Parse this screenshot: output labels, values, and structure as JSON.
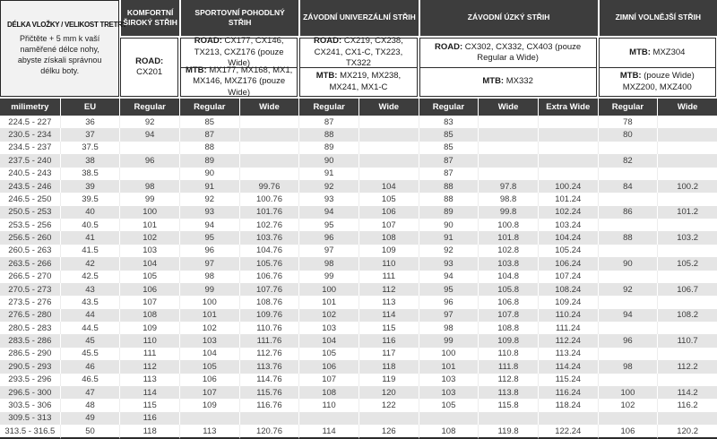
{
  "colors": {
    "header_bg": "#3d3d3d",
    "header_text": "#ffffff",
    "zebra_row": "#e5e5e5",
    "info_box_bg": "#f2f2f2",
    "border_dark": "#2b2b2b"
  },
  "chart_data": {
    "type": "table",
    "info_box": {
      "title": "DÉLKA VLOŽKY / VELIKOST TRETRY",
      "description": "Přičtěte + 5 mm k vaší naměřené délce nohy, abyste získali správnou délku boty."
    },
    "groups": [
      {
        "name": "KOMFORTNÍ ŠIROKÝ STŘIH",
        "rows": [
          {
            "label": "ROAD:",
            "models": "CX201"
          }
        ]
      },
      {
        "name": "SPORTOVNÍ POHODLNÝ STŘIH",
        "rows": [
          {
            "label": "ROAD:",
            "models": "CX177, CX146, TX213, CXZ176 (pouze Wide)"
          },
          {
            "label": "MTB:",
            "models": "MX177, MX168, MX1, MX146, MXZ176 (pouze Wide)"
          }
        ]
      },
      {
        "name": "ZÁVODNÍ UNIVERZÁLNÍ STŘIH",
        "rows": [
          {
            "label": "ROAD:",
            "models": "CX219, CX238, CX241, CX1-C, TX223, TX322"
          },
          {
            "label": "MTB:",
            "models": "MX219, MX238, MX241, MX1-C"
          }
        ]
      },
      {
        "name": "ZÁVODNÍ ÚZKÝ STŘIH",
        "rows": [
          {
            "label": "ROAD:",
            "models": "CX302, CX332, CX403 (pouze Regular a Wide)"
          },
          {
            "label": "MTB:",
            "models": "MX332"
          }
        ]
      },
      {
        "name": "ZIMNÍ VOLNĚJŠÍ STŘIH",
        "rows": [
          {
            "label": "MTB:",
            "models": "MXZ304"
          },
          {
            "label": "MTB:",
            "models": "(pouze Wide) MXZ200, MXZ400"
          }
        ]
      }
    ],
    "columns": [
      "milimetry",
      "EU",
      "Regular",
      "Regular",
      "Wide",
      "Regular",
      "Wide",
      "Regular",
      "Wide",
      "Extra Wide",
      "Regular",
      "Wide"
    ],
    "rows": [
      [
        "224.5 - 227",
        "36",
        "92",
        "85",
        "",
        "87",
        "",
        "83",
        "",
        "",
        "78",
        ""
      ],
      [
        "230.5 - 234",
        "37",
        "94",
        "87",
        "",
        "88",
        "",
        "85",
        "",
        "",
        "80",
        ""
      ],
      [
        "234.5 - 237",
        "37.5",
        "",
        "88",
        "",
        "89",
        "",
        "85",
        "",
        "",
        "",
        ""
      ],
      [
        "237.5 - 240",
        "38",
        "96",
        "89",
        "",
        "90",
        "",
        "87",
        "",
        "",
        "82",
        ""
      ],
      [
        "240.5 - 243",
        "38.5",
        "",
        "90",
        "",
        "91",
        "",
        "87",
        "",
        "",
        "",
        ""
      ],
      [
        "243.5 - 246",
        "39",
        "98",
        "91",
        "99.76",
        "92",
        "104",
        "88",
        "97.8",
        "100.24",
        "84",
        "100.2"
      ],
      [
        "246.5 - 250",
        "39.5",
        "99",
        "92",
        "100.76",
        "93",
        "105",
        "88",
        "98.8",
        "101.24",
        "",
        ""
      ],
      [
        "250.5 - 253",
        "40",
        "100",
        "93",
        "101.76",
        "94",
        "106",
        "89",
        "99.8",
        "102.24",
        "86",
        "101.2"
      ],
      [
        "253.5 - 256",
        "40.5",
        "101",
        "94",
        "102.76",
        "95",
        "107",
        "90",
        "100.8",
        "103.24",
        "",
        ""
      ],
      [
        "256.5 - 260",
        "41",
        "102",
        "95",
        "103.76",
        "96",
        "108",
        "91",
        "101.8",
        "104.24",
        "88",
        "103.2"
      ],
      [
        "260.5 - 263",
        "41.5",
        "103",
        "96",
        "104.76",
        "97",
        "109",
        "92",
        "102.8",
        "105.24",
        "",
        ""
      ],
      [
        "263.5 - 266",
        "42",
        "104",
        "97",
        "105.76",
        "98",
        "110",
        "93",
        "103.8",
        "106.24",
        "90",
        "105.2"
      ],
      [
        "266.5 - 270",
        "42.5",
        "105",
        "98",
        "106.76",
        "99",
        "111",
        "94",
        "104.8",
        "107.24",
        "",
        ""
      ],
      [
        "270.5 - 273",
        "43",
        "106",
        "99",
        "107.76",
        "100",
        "112",
        "95",
        "105.8",
        "108.24",
        "92",
        "106.7"
      ],
      [
        "273.5 - 276",
        "43.5",
        "107",
        "100",
        "108.76",
        "101",
        "113",
        "96",
        "106.8",
        "109.24",
        "",
        ""
      ],
      [
        "276.5 - 280",
        "44",
        "108",
        "101",
        "109.76",
        "102",
        "114",
        "97",
        "107.8",
        "110.24",
        "94",
        "108.2"
      ],
      [
        "280.5 - 283",
        "44.5",
        "109",
        "102",
        "110.76",
        "103",
        "115",
        "98",
        "108.8",
        "111.24",
        "",
        ""
      ],
      [
        "283.5 - 286",
        "45",
        "110",
        "103",
        "111.76",
        "104",
        "116",
        "99",
        "109.8",
        "112.24",
        "96",
        "110.7"
      ],
      [
        "286.5 - 290",
        "45.5",
        "111",
        "104",
        "112.76",
        "105",
        "117",
        "100",
        "110.8",
        "113.24",
        "",
        ""
      ],
      [
        "290.5 - 293",
        "46",
        "112",
        "105",
        "113.76",
        "106",
        "118",
        "101",
        "111.8",
        "114.24",
        "98",
        "112.2"
      ],
      [
        "293.5 - 296",
        "46.5",
        "113",
        "106",
        "114.76",
        "107",
        "119",
        "103",
        "112.8",
        "115.24",
        "",
        ""
      ],
      [
        "296.5 - 300",
        "47",
        "114",
        "107",
        "115.76",
        "108",
        "120",
        "103",
        "113.8",
        "116.24",
        "100",
        "114.2"
      ],
      [
        "303.5 - 306",
        "48",
        "115",
        "109",
        "116.76",
        "110",
        "122",
        "105",
        "115.8",
        "118.24",
        "102",
        "116.2"
      ],
      [
        "309.5 - 313",
        "49",
        "116",
        "",
        "",
        "",
        "",
        "",
        "",
        "",
        "",
        ""
      ],
      [
        "313.5 - 316.5",
        "50",
        "118",
        "113",
        "120.76",
        "114",
        "126",
        "108",
        "119.8",
        "122.24",
        "106",
        "120.2"
      ]
    ]
  }
}
